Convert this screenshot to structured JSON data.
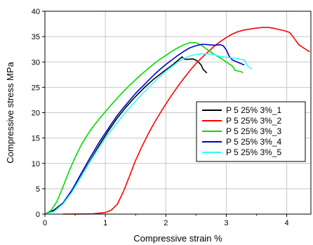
{
  "chart_data": {
    "type": "line",
    "xlabel": "Compressive strain %",
    "ylabel": "Compressive stress MPa",
    "xlim": [
      0,
      4.4
    ],
    "ylim": [
      0,
      40
    ],
    "xticks": [
      "0",
      "1",
      "2",
      "3",
      "4"
    ],
    "yticks": [
      "0",
      "5",
      "10",
      "15",
      "20",
      "25",
      "30",
      "35",
      "40"
    ],
    "grid": true,
    "legend_position": "center-right",
    "series": [
      {
        "name": "P 5 25% 3%_1",
        "color": "#000000",
        "points": [
          [
            0,
            0
          ],
          [
            0.15,
            0.8
          ],
          [
            0.3,
            2.2
          ],
          [
            0.45,
            4.5
          ],
          [
            0.6,
            7.5
          ],
          [
            0.75,
            10.6
          ],
          [
            0.9,
            13.6
          ],
          [
            1.05,
            16.4
          ],
          [
            1.2,
            19.0
          ],
          [
            1.35,
            21.2
          ],
          [
            1.5,
            23.2
          ],
          [
            1.65,
            25.0
          ],
          [
            1.8,
            26.6
          ],
          [
            1.95,
            28.0
          ],
          [
            2.1,
            29.3
          ],
          [
            2.2,
            30.3
          ],
          [
            2.27,
            31.0
          ],
          [
            2.3,
            30.6
          ],
          [
            2.35,
            30.5
          ],
          [
            2.45,
            30.6
          ],
          [
            2.52,
            30.2
          ],
          [
            2.58,
            29.5
          ],
          [
            2.62,
            28.5
          ],
          [
            2.68,
            27.8
          ]
        ]
      },
      {
        "name": "P 5 25% 3%_2",
        "color": "#ff0000",
        "points": [
          [
            0.3,
            0
          ],
          [
            0.8,
            0.05
          ],
          [
            1.0,
            0.3
          ],
          [
            1.1,
            0.8
          ],
          [
            1.2,
            2.0
          ],
          [
            1.3,
            4.5
          ],
          [
            1.4,
            7.5
          ],
          [
            1.5,
            10.6
          ],
          [
            1.6,
            13.2
          ],
          [
            1.7,
            15.6
          ],
          [
            1.8,
            17.8
          ],
          [
            1.9,
            19.8
          ],
          [
            2.0,
            21.7
          ],
          [
            2.1,
            23.5
          ],
          [
            2.2,
            25.2
          ],
          [
            2.3,
            26.8
          ],
          [
            2.4,
            28.3
          ],
          [
            2.5,
            29.7
          ],
          [
            2.6,
            30.9
          ],
          [
            2.7,
            32.0
          ],
          [
            2.8,
            33.1
          ],
          [
            2.9,
            34.0
          ],
          [
            3.0,
            34.8
          ],
          [
            3.1,
            35.5
          ],
          [
            3.2,
            36.0
          ],
          [
            3.3,
            36.3
          ],
          [
            3.45,
            36.6
          ],
          [
            3.6,
            36.8
          ],
          [
            3.7,
            36.8
          ],
          [
            3.8,
            36.6
          ],
          [
            3.95,
            36.2
          ],
          [
            4.05,
            35.8
          ],
          [
            4.12,
            34.7
          ],
          [
            4.2,
            33.4
          ],
          [
            4.3,
            32.6
          ],
          [
            4.38,
            32.0
          ]
        ]
      },
      {
        "name": "P 5 25% 3%_3",
        "color": "#00dd00",
        "points": [
          [
            0,
            0
          ],
          [
            0.1,
            0.7
          ],
          [
            0.2,
            2.5
          ],
          [
            0.3,
            5.4
          ],
          [
            0.4,
            8.5
          ],
          [
            0.5,
            11.2
          ],
          [
            0.6,
            13.6
          ],
          [
            0.7,
            15.6
          ],
          [
            0.8,
            17.3
          ],
          [
            0.9,
            18.8
          ],
          [
            1.0,
            20.2
          ],
          [
            1.1,
            21.6
          ],
          [
            1.2,
            22.9
          ],
          [
            1.3,
            24.2
          ],
          [
            1.4,
            25.4
          ],
          [
            1.5,
            26.5
          ],
          [
            1.6,
            27.6
          ],
          [
            1.7,
            28.6
          ],
          [
            1.8,
            29.6
          ],
          [
            1.9,
            30.5
          ],
          [
            2.0,
            31.3
          ],
          [
            2.1,
            32.1
          ],
          [
            2.2,
            32.8
          ],
          [
            2.3,
            33.4
          ],
          [
            2.4,
            33.8
          ],
          [
            2.5,
            33.8
          ],
          [
            2.6,
            33.2
          ],
          [
            2.7,
            32.3
          ],
          [
            2.8,
            31.5
          ],
          [
            2.9,
            30.8
          ],
          [
            3.0,
            30.0
          ],
          [
            3.1,
            29.2
          ],
          [
            3.15,
            28.3
          ],
          [
            3.25,
            28.1
          ],
          [
            3.27,
            27.8
          ]
        ]
      },
      {
        "name": "P 5 25% 3%_4",
        "color": "#0000cc",
        "points": [
          [
            0,
            0
          ],
          [
            0.15,
            0.6
          ],
          [
            0.3,
            2.2
          ],
          [
            0.45,
            4.8
          ],
          [
            0.6,
            8.0
          ],
          [
            0.75,
            11.2
          ],
          [
            0.9,
            14.2
          ],
          [
            1.0,
            16.0
          ],
          [
            1.1,
            17.8
          ],
          [
            1.2,
            19.5
          ],
          [
            1.3,
            21.0
          ],
          [
            1.4,
            22.4
          ],
          [
            1.5,
            23.8
          ],
          [
            1.6,
            25.0
          ],
          [
            1.7,
            26.2
          ],
          [
            1.8,
            27.4
          ],
          [
            1.9,
            28.5
          ],
          [
            2.0,
            29.5
          ],
          [
            2.1,
            30.4
          ],
          [
            2.2,
            31.3
          ],
          [
            2.3,
            32.1
          ],
          [
            2.4,
            32.8
          ],
          [
            2.5,
            33.2
          ],
          [
            2.6,
            33.5
          ],
          [
            2.7,
            33.4
          ],
          [
            2.8,
            33.3
          ],
          [
            2.9,
            33.4
          ],
          [
            2.95,
            33.2
          ],
          [
            3.0,
            32.4
          ],
          [
            3.05,
            31.1
          ],
          [
            3.1,
            30.4
          ],
          [
            3.2,
            29.9
          ],
          [
            3.3,
            29.4
          ]
        ]
      },
      {
        "name": "P 5 25% 3%_5",
        "color": "#33ffff",
        "points": [
          [
            0,
            0
          ],
          [
            0.15,
            0.5
          ],
          [
            0.3,
            2.0
          ],
          [
            0.45,
            4.4
          ],
          [
            0.6,
            7.4
          ],
          [
            0.75,
            10.4
          ],
          [
            0.9,
            13.2
          ],
          [
            1.0,
            15.0
          ],
          [
            1.1,
            16.6
          ],
          [
            1.2,
            18.1
          ],
          [
            1.3,
            19.6
          ],
          [
            1.4,
            21.0
          ],
          [
            1.5,
            22.3
          ],
          [
            1.6,
            23.6
          ],
          [
            1.7,
            24.8
          ],
          [
            1.8,
            26.0
          ],
          [
            1.9,
            27.1
          ],
          [
            2.0,
            28.2
          ],
          [
            2.1,
            29.1
          ],
          [
            2.2,
            30.0
          ],
          [
            2.3,
            30.7
          ],
          [
            2.4,
            31.2
          ],
          [
            2.5,
            31.5
          ],
          [
            2.6,
            31.6
          ],
          [
            2.7,
            31.6
          ],
          [
            2.8,
            31.4
          ],
          [
            2.9,
            31.1
          ],
          [
            3.0,
            30.9
          ],
          [
            3.1,
            30.8
          ],
          [
            3.2,
            30.6
          ],
          [
            3.3,
            30.4
          ],
          [
            3.35,
            29.2
          ],
          [
            3.42,
            28.6
          ]
        ]
      }
    ]
  }
}
